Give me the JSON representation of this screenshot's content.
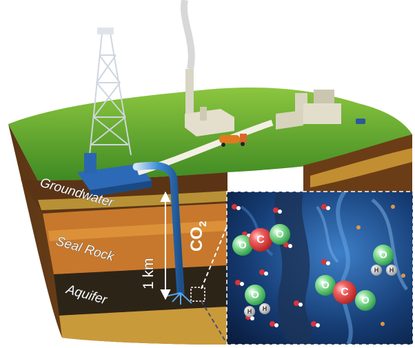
{
  "labels": {
    "groundwater": "Groundwater",
    "seal_rock": "Seal Rock",
    "aquifer": "Aquifer",
    "depth": "1 km",
    "co2_main": "CO",
    "co2_sub": "2"
  },
  "atoms": {
    "carbon": "C",
    "oxygen": "O",
    "hydrogen": "H"
  },
  "colors": {
    "grass": "#4e9a2a",
    "soil_top": "#7b4a1e",
    "seal_rock": "#c57a2a",
    "aquifer": "#2f2a20",
    "pipe": "#2f7fd0",
    "carbon": "#e23b3b",
    "oxygen": "#3dbb5a",
    "hydrogen": "#d9d9d9",
    "pore_background": "#0f2a55"
  }
}
